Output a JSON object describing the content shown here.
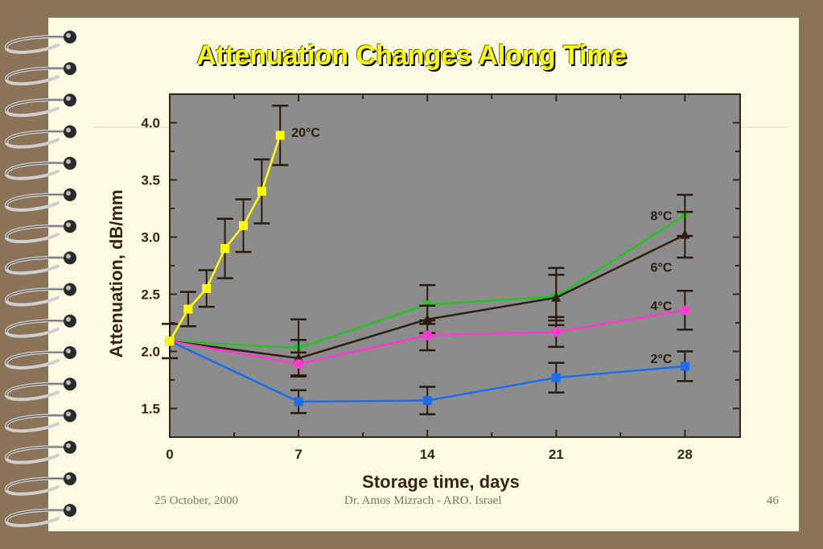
{
  "slide": {
    "title": "Attenuation Changes Along Time",
    "footer_date": "25 October, 2000",
    "footer_author": "Dr.  Amos Mizrach - ARO. Israel",
    "page_number": "46"
  },
  "colors": {
    "background": "#8b7358",
    "slide": "#fbfbe3",
    "plot_area": "#8c8c8c",
    "title": "#ffff00",
    "axis_text": "#3a2410"
  },
  "chart_data": {
    "type": "line",
    "xlabel": "Storage time,  days",
    "ylabel": "Attenuation,  dB/mm",
    "xlim": [
      0,
      31
    ],
    "ylim": [
      1.25,
      4.25
    ],
    "x_ticks": [
      0,
      7,
      14,
      21,
      28
    ],
    "y_ticks": [
      1.5,
      2.0,
      2.5,
      3.0,
      3.5,
      4.0
    ],
    "y_tick_labels": [
      "1.5",
      "2.0",
      "2.5",
      "3.0",
      "3.5",
      "4.0"
    ],
    "grid": false,
    "series": [
      {
        "name": "20°C",
        "color": "#ffff00",
        "marker": "square",
        "x": [
          0,
          1,
          2,
          3,
          4,
          5,
          6
        ],
        "y": [
          2.09,
          2.37,
          2.55,
          2.9,
          3.1,
          3.4,
          3.89
        ],
        "err": [
          0.15,
          0.15,
          0.16,
          0.26,
          0.23,
          0.28,
          0.26
        ]
      },
      {
        "name": "8°C",
        "color": "#22c422",
        "marker": "triangle-down",
        "x": [
          0,
          7,
          14,
          21,
          28
        ],
        "y": [
          2.09,
          2.03,
          2.41,
          2.48,
          3.19
        ],
        "err": [
          0,
          0.25,
          0.17,
          0.25,
          0.18
        ]
      },
      {
        "name": "6°C",
        "color": "#2e2010",
        "marker": "triangle-up",
        "x": [
          0,
          7,
          14,
          21,
          28
        ],
        "y": [
          2.09,
          1.94,
          2.28,
          2.47,
          3.02
        ],
        "err": [
          0,
          0.16,
          0.12,
          0.2,
          0.2
        ]
      },
      {
        "name": "4°C",
        "color": "#ff3ad0",
        "marker": "circle",
        "x": [
          0,
          7,
          14,
          21,
          28
        ],
        "y": [
          2.09,
          1.89,
          2.14,
          2.17,
          2.36
        ],
        "err": [
          0,
          0.1,
          0.13,
          0.13,
          0.17
        ]
      },
      {
        "name": "2°C",
        "color": "#1a6cf0",
        "marker": "square",
        "x": [
          0,
          7,
          14,
          21,
          28
        ],
        "y": [
          2.09,
          1.56,
          1.57,
          1.77,
          1.87
        ],
        "err": [
          0,
          0.1,
          0.12,
          0.13,
          0.13
        ]
      }
    ]
  }
}
